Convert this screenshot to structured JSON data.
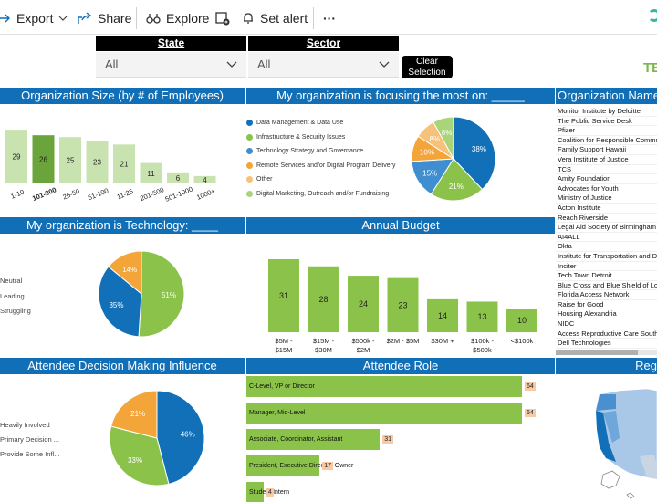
{
  "toolbar": {
    "export_label": "Export",
    "share_label": "Share",
    "explore_label": "Explore",
    "set_alert_label": "Set alert",
    "more_label": "···"
  },
  "slicers": {
    "state": {
      "header": "State",
      "value": "All"
    },
    "sector": {
      "header": "Sector",
      "value": "All"
    },
    "clear_label_1": "Clear",
    "clear_label_2": "Selection"
  },
  "brand_fragment": "TE",
  "colors": {
    "title_bar": "#116fb7",
    "green": "#8bc34a",
    "dark_green": "#6aa43a",
    "light_green": "#c9e3b0",
    "blue": "#1170b8",
    "orange": "#f3a53a",
    "light_blue": "#3f8fd0"
  },
  "org_size": {
    "title": "Organization Size (by # of Employees)",
    "chart_data": {
      "type": "bar",
      "categories": [
        "1-10",
        "101-200",
        "26-50",
        "51-100",
        "11-25",
        "201-500",
        "501-1000",
        "1000+"
      ],
      "values": [
        29,
        26,
        25,
        23,
        21,
        11,
        6,
        4
      ],
      "highlight": "101-200"
    }
  },
  "focus": {
    "title": "My organization is focusing the most on: _____",
    "chart_data": {
      "type": "pie",
      "labels": [
        "Data Management & Data Use",
        "Infrastructure & Security Issues",
        "Technology Strategy and Governance",
        "Remote Services and/or Digital Program Delivery",
        "Other",
        "Digital Marketing, Outreach and/or Fundraising"
      ],
      "values": [
        38,
        21,
        15,
        10,
        8,
        8
      ],
      "value_labels": [
        "38%",
        "21%",
        "15%",
        "10%",
        "8%",
        "8%"
      ],
      "colors": [
        "#1170b8",
        "#8bc34a",
        "#3f8fd0",
        "#f3a53a",
        "#f6c17a",
        "#a9d47a"
      ]
    }
  },
  "org_names": {
    "title": "Organization Name",
    "items": [
      "Monitor Institute by Deloitte",
      "The Public Service Desk",
      "Pfizer",
      "Coalition for Responsible Commu",
      "Family Support Hawaii",
      "Vera Institute of Justice",
      "TCS",
      "Amity Foundation",
      "Advocates for Youth",
      "Ministry of Justice",
      "Acton Institute",
      "Reach Riverside",
      "Legal Aid Society of Birmingham",
      "AI4ALL",
      "Okta",
      "Institute for Transportation and D",
      "Inciter",
      "Tech Town Detroit",
      "Blue Cross and Blue Shield of Lou",
      "Florida Access Network",
      "Raise for Good",
      "Housing Alexandria",
      "NIDC",
      "Access Reproductive Care Southe",
      "Dell Technologies"
    ]
  },
  "technology": {
    "title": "My organization is Technology: ____",
    "legend": [
      "Neutral",
      "Leading",
      "Struggling"
    ],
    "chart_data": {
      "type": "pie",
      "labels": [
        "Neutral",
        "Leading",
        "Struggling"
      ],
      "values": [
        51,
        35,
        14
      ],
      "value_labels": [
        "51%",
        "35%",
        "14%"
      ],
      "colors": [
        "#8bc34a",
        "#1170b8",
        "#f3a53a"
      ]
    }
  },
  "budget": {
    "title": "Annual Budget",
    "chart_data": {
      "type": "bar",
      "categories": [
        "$5M - $15M",
        "$15M - $30M",
        "$500k - $2M",
        "$2M - $5M",
        "$30M +",
        "$100k - $500k",
        "<$100k"
      ],
      "values": [
        31,
        28,
        24,
        23,
        14,
        13,
        10
      ]
    },
    "cat_lines": [
      [
        "$5M -",
        "$15M"
      ],
      [
        "$15M -",
        "$30M"
      ],
      [
        "$500k -",
        "$2M"
      ],
      [
        "$2M - $5M",
        ""
      ],
      [
        "$30M +",
        ""
      ],
      [
        "$100k -",
        "$500k"
      ],
      [
        "<$100k",
        ""
      ]
    ]
  },
  "influence": {
    "title": "Attendee Decision Making Influence",
    "legend": [
      "Heavily Involved",
      "Primary Decision ...",
      "Provide Some Infl..."
    ],
    "chart_data": {
      "type": "pie",
      "labels": [
        "Heavily Involved",
        "Primary Decision ...",
        "Provide Some Infl..."
      ],
      "values": [
        46,
        33,
        21
      ],
      "value_labels": [
        "46%",
        "33%",
        "21%"
      ],
      "colors": [
        "#1170b8",
        "#8bc34a",
        "#f3a53a"
      ]
    }
  },
  "role": {
    "title": "Attendee Role",
    "chart_data": {
      "type": "bar",
      "orientation": "horizontal",
      "categories": [
        "C-Level, VP or Director",
        "Manager, Mid-Level",
        "Associate, Coordinator, Assistant",
        "President, Executive Director, Owner",
        "Student/Intern"
      ],
      "values": [
        64,
        64,
        31,
        17,
        4
      ]
    }
  },
  "region": {
    "title_fragment": "Reg"
  }
}
